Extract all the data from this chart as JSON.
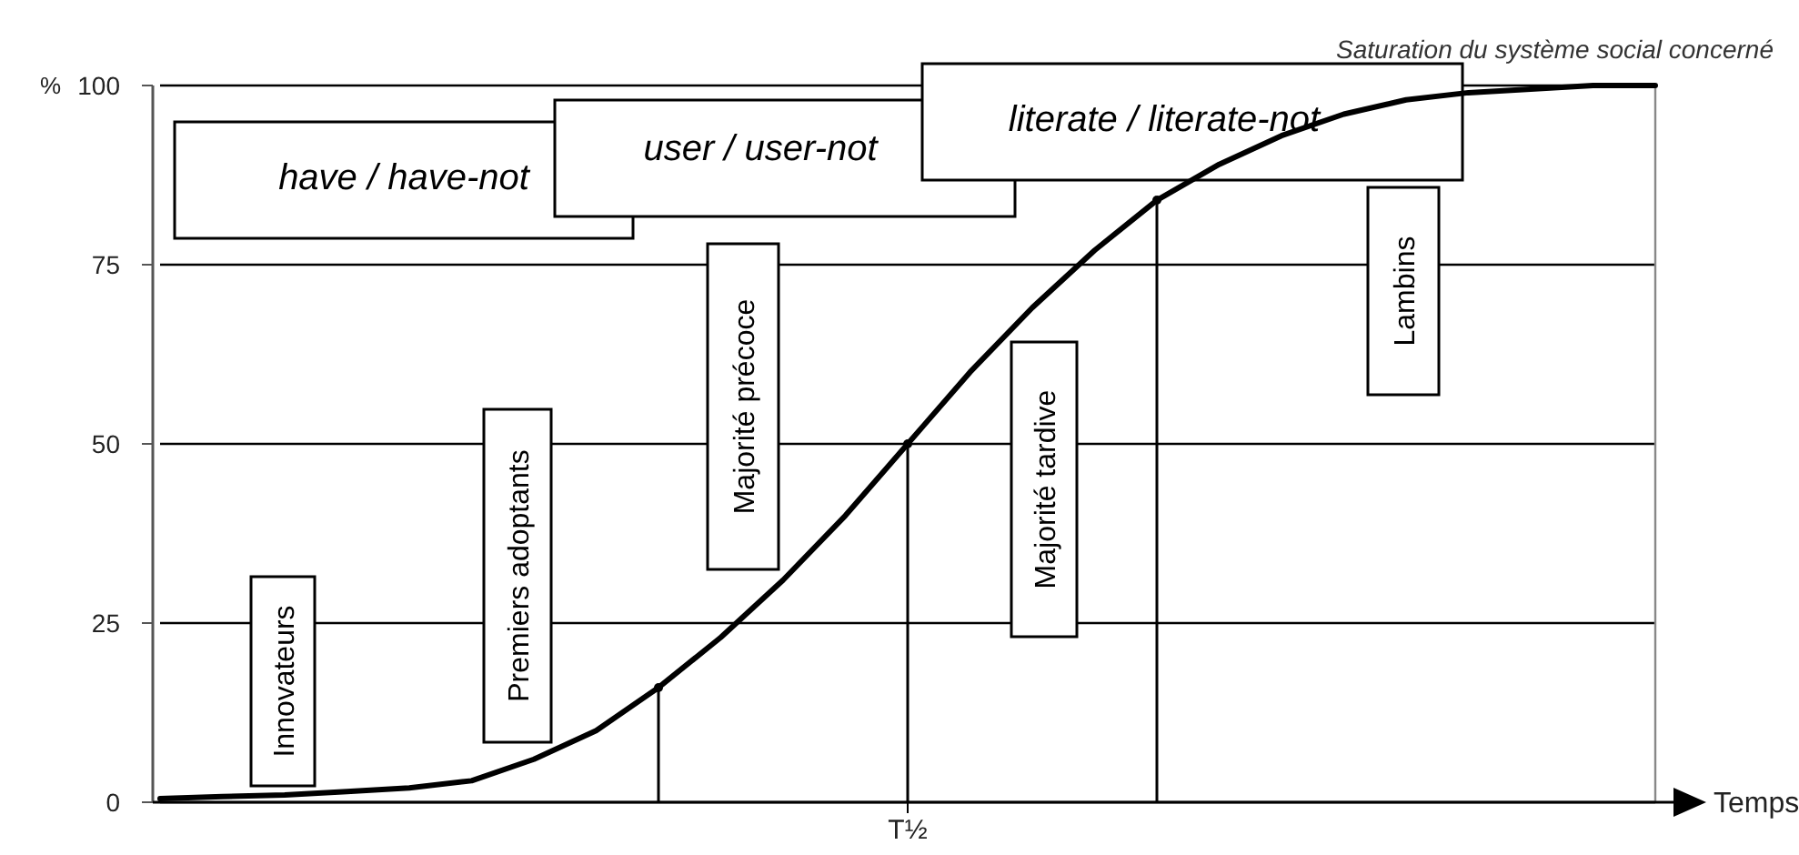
{
  "chart_data": {
    "type": "line",
    "title": "Saturation du système social concerné",
    "xlabel": "Temps",
    "ylabel": "%",
    "categories": [
      null,
      null,
      null,
      null,
      null,
      null,
      null,
      null,
      null,
      null,
      null,
      null,
      "T½",
      null,
      null,
      null,
      null,
      null,
      null,
      null,
      null,
      null,
      null,
      null,
      null
    ],
    "series": [
      {
        "color": "#000000",
        "values": [
          0.5,
          0.8,
          1,
          1.5,
          2,
          3,
          6,
          10,
          16,
          23,
          31,
          40,
          50,
          60,
          69,
          77,
          84,
          89,
          93,
          96,
          98,
          99,
          99.5,
          100,
          100
        ]
      },
      {
        "type": "lollipop",
        "color": "#000000",
        "values": [
          null,
          null,
          null,
          null,
          null,
          null,
          null,
          null,
          16,
          null,
          null,
          null,
          50,
          null,
          null,
          null,
          84,
          null,
          null,
          null,
          null,
          null,
          null,
          null,
          null
        ]
      }
    ],
    "ylim": [
      0,
      100
    ],
    "yticks": [
      0,
      25,
      50,
      75,
      100
    ],
    "grid": "y",
    "line_style": "solid",
    "annotations": [
      "Innovateurs",
      "Premiers adoptants",
      "Majorité précoce",
      "Majorité tardive",
      "Lambins",
      "have / have-not",
      "user / user-not",
      "literate / literate-not"
    ]
  }
}
